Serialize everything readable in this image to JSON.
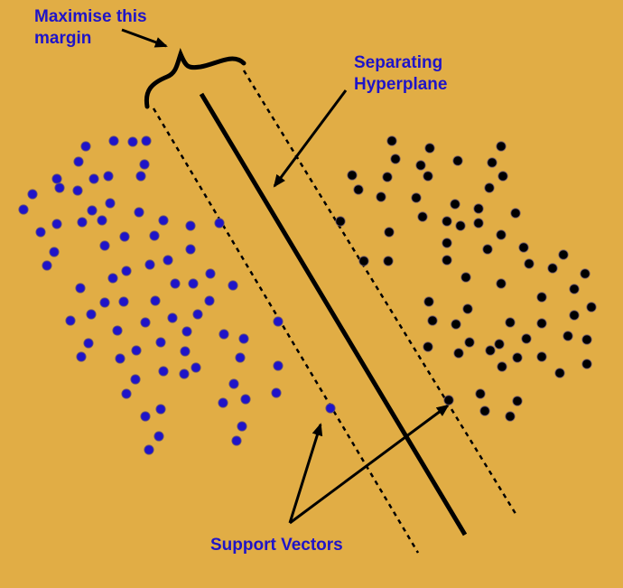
{
  "labels": {
    "margin": "Maximise this\nmargin",
    "hyperplane": "Separating\nHyperplane",
    "support_vectors": "Support Vectors"
  },
  "colors": {
    "background": "#e1ad45",
    "label_text": "#1f14c8",
    "class_blue": "#1f14c8",
    "class_black": "#000000",
    "lines": "#000000"
  },
  "icons": {
    "brace": "curly-brace-icon",
    "arrows": "arrow-icon"
  }
}
